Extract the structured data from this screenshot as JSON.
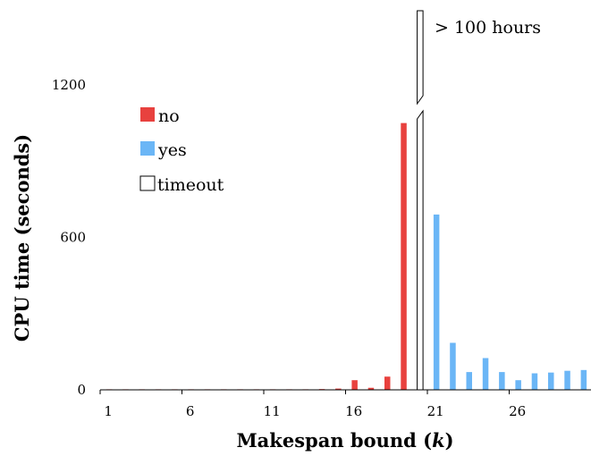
{
  "chart_data": {
    "type": "bar",
    "xlabel": "Makespan bound (",
    "xlabel_var": "k",
    "xlabel_end": ")",
    "ylabel": "CPU time (seconds)",
    "ylim": [
      0,
      1200
    ],
    "yticks": [
      0,
      600,
      1200
    ],
    "xtick_labels": [
      1,
      6,
      11,
      16,
      21,
      26
    ],
    "x": [
      1,
      2,
      3,
      4,
      5,
      6,
      7,
      8,
      9,
      10,
      11,
      12,
      13,
      14,
      15,
      16,
      17,
      18,
      19,
      20,
      21,
      22,
      23,
      24,
      25,
      26,
      27,
      28,
      29,
      30
    ],
    "series": [
      {
        "name": "no",
        "color": "#e8413e",
        "values": [
          0,
          0,
          0,
          0,
          0,
          0,
          0,
          1,
          1,
          1,
          1,
          1,
          2,
          3,
          5,
          38,
          8,
          52,
          1050,
          null,
          null,
          null,
          null,
          null,
          null,
          null,
          null,
          null,
          null,
          null
        ]
      },
      {
        "name": "yes",
        "color": "#6bb6f6",
        "values": [
          null,
          null,
          null,
          null,
          null,
          null,
          null,
          null,
          null,
          null,
          null,
          null,
          null,
          null,
          null,
          null,
          null,
          null,
          null,
          null,
          690,
          185,
          70,
          125,
          70,
          38,
          65,
          68,
          75,
          78
        ]
      },
      {
        "name": "timeout",
        "color": "#ffffff",
        "values": [
          null,
          null,
          null,
          null,
          null,
          null,
          null,
          null,
          null,
          null,
          null,
          null,
          null,
          null,
          null,
          null,
          null,
          null,
          null,
          "> 100 hours",
          null,
          null,
          null,
          null,
          null,
          null,
          null,
          null,
          null,
          null
        ]
      }
    ],
    "annotation": "> 100 hours",
    "legend_position": "top-left",
    "grid": false
  }
}
